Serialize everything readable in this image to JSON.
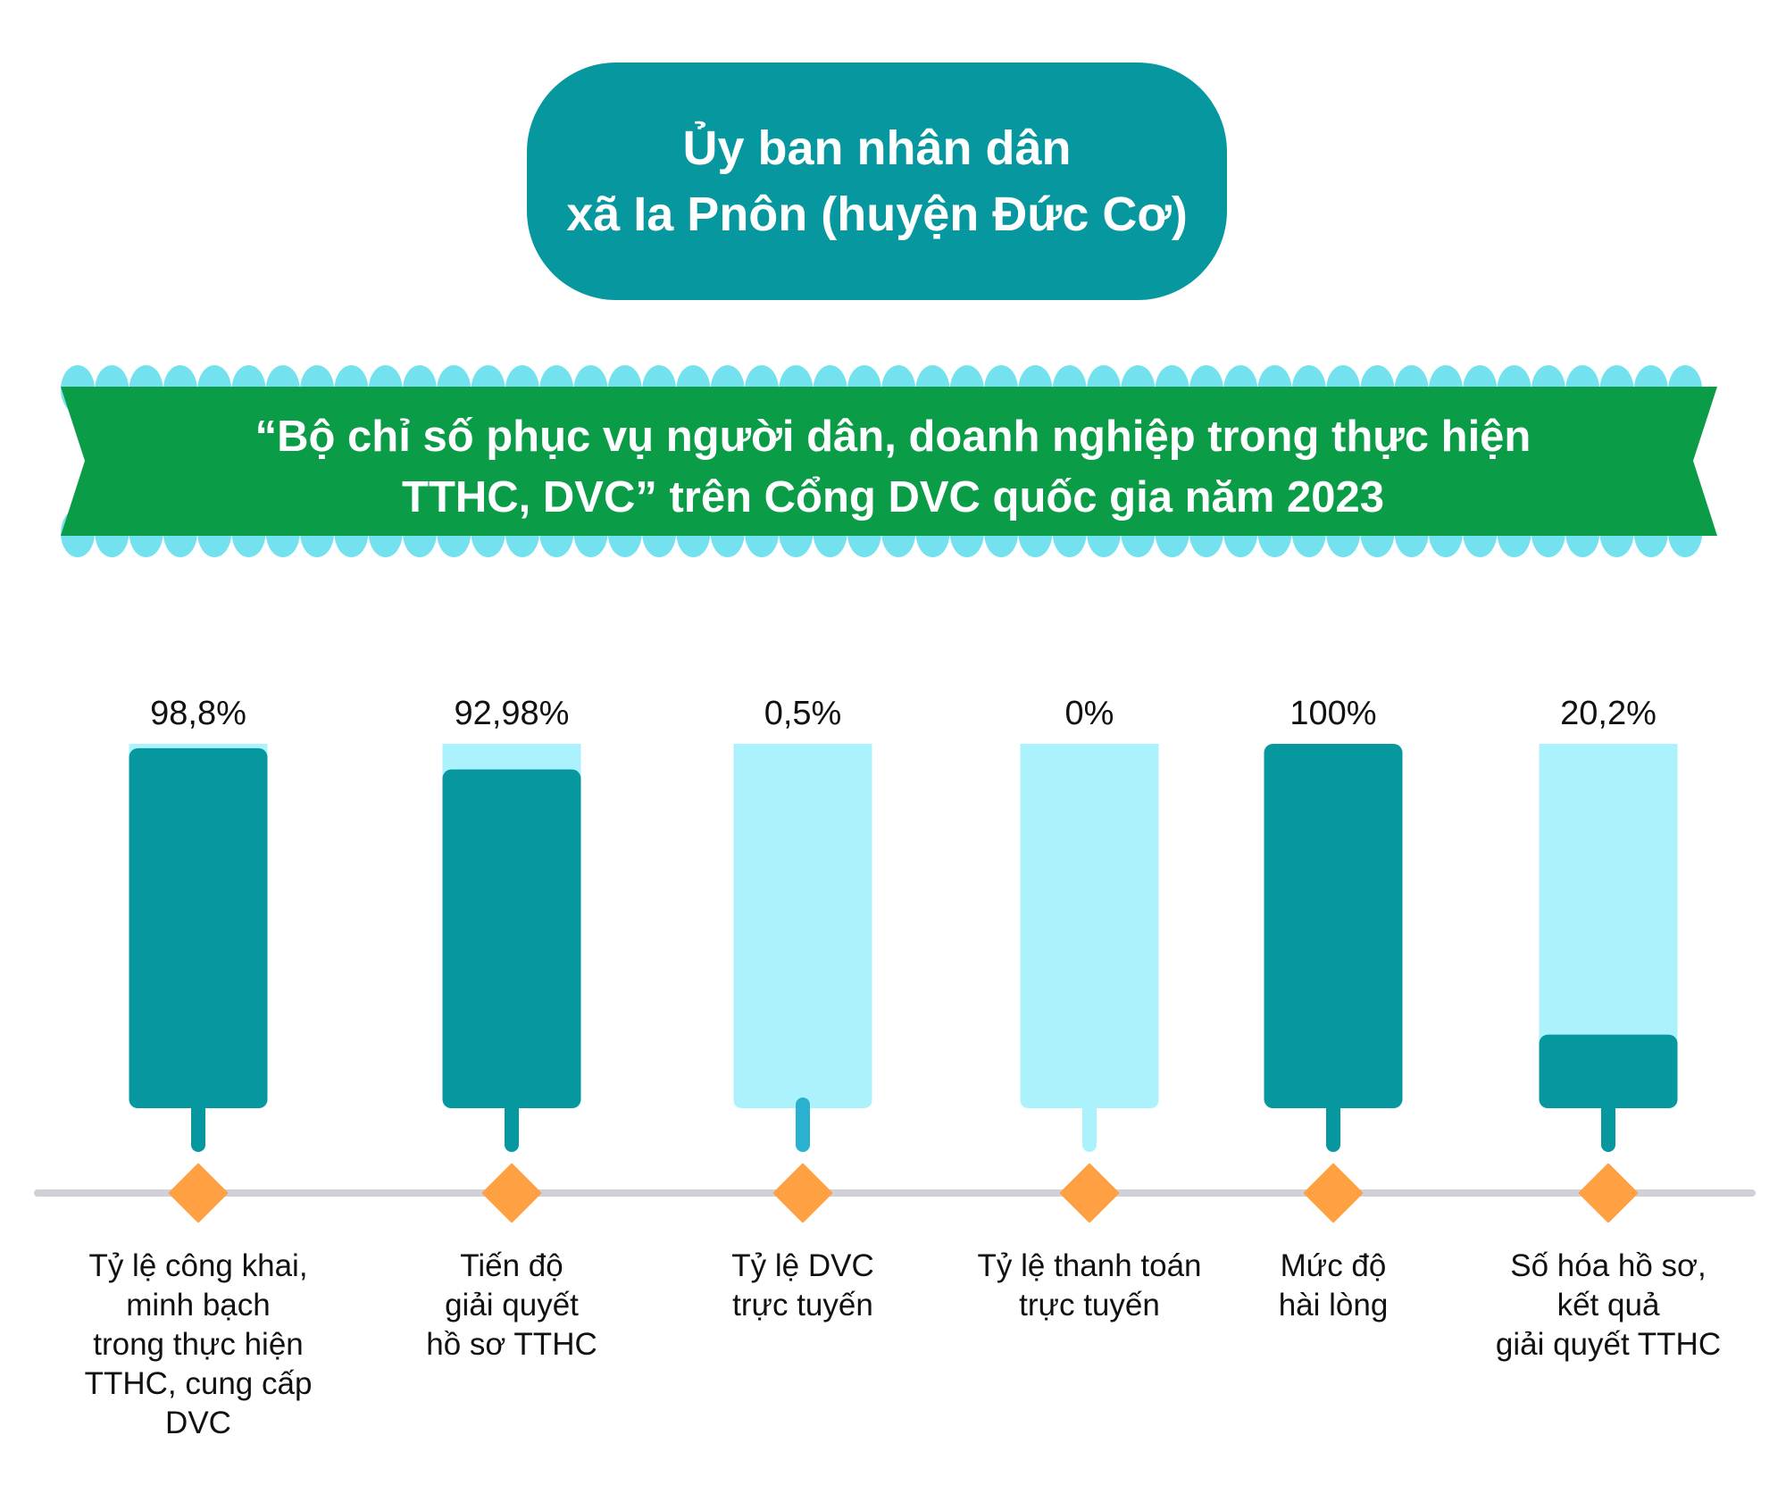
{
  "header": {
    "line1": "Ủy ban nhân dân",
    "line2": "xã Ia Pnôn (huyện Đức Cơ)"
  },
  "banner": {
    "line1": "“Bộ chỉ số phục vụ người dân, doanh nghiệp trong thực hiện",
    "line2": "TTHC, DVC” trên Cổng DVC quốc gia năm 2023"
  },
  "colors": {
    "teal": "#07979F",
    "light": "#ABF2FC",
    "green": "#0A9C47",
    "scallop": "#74E1EE",
    "diamond": "#FFA043",
    "axis": "#D0D0D6"
  },
  "chart_data": {
    "type": "bar",
    "title": "Bộ chỉ số phục vụ người dân, doanh nghiệp trong thực hiện TTHC, DVC trên Cổng DVC quốc gia năm 2023",
    "ylim": [
      0,
      100
    ],
    "unit": "%",
    "categories": [
      [
        "Tỷ lệ công khai,",
        "minh bạch",
        "trong thực hiện",
        "TTHC, cung cấp",
        "DVC"
      ],
      [
        "Tiến độ",
        "giải quyết",
        "hồ sơ TTHC"
      ],
      [
        "Tỷ lệ DVC",
        "trực tuyến"
      ],
      [
        "Tỷ lệ thanh toán",
        "trực tuyến"
      ],
      [
        "Mức độ",
        "hài lòng"
      ],
      [
        "Số hóa hồ sơ,",
        "kết quả",
        "giải quyết TTHC"
      ]
    ],
    "values": [
      98.8,
      92.98,
      0.5,
      0,
      100,
      20.2
    ],
    "labels": [
      "98,8%",
      "92,98%",
      "0,5%",
      "0%",
      "100%",
      "20,2%"
    ]
  }
}
